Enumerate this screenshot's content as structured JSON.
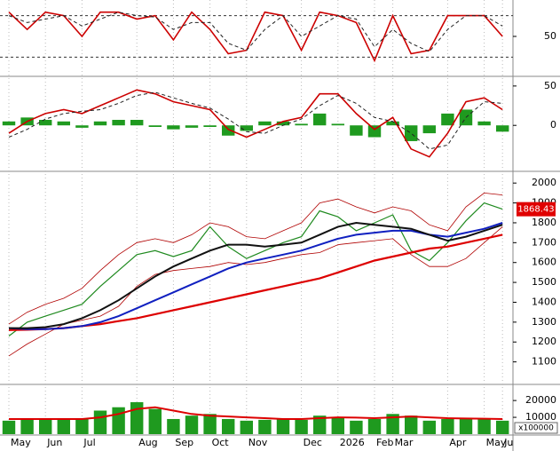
{
  "chart_data": [
    {
      "type": "line",
      "ylim": [
        0,
        100
      ],
      "yticks": [
        50
      ],
      "hlines": [
        20,
        80
      ],
      "series": [
        {
          "color": "#cc0000",
          "width": 1.6,
          "dash": false,
          "values": [
            85,
            60,
            85,
            80,
            50,
            85,
            85,
            75,
            80,
            45,
            85,
            60,
            25,
            30,
            85,
            80,
            30,
            85,
            80,
            70,
            15,
            80,
            25,
            30,
            80,
            80,
            80,
            50
          ]
        },
        {
          "color": "#222222",
          "width": 1,
          "dash": true,
          "values": [
            80,
            70,
            75,
            80,
            65,
            75,
            85,
            80,
            78,
            60,
            70,
            70,
            40,
            30,
            60,
            80,
            50,
            65,
            80,
            75,
            35,
            60,
            40,
            28,
            60,
            80,
            80,
            65
          ]
        }
      ]
    },
    {
      "type": "line",
      "ylim": [
        -55,
        60
      ],
      "yticks": [
        0,
        50
      ],
      "series": [
        {
          "type": "bar",
          "color": "#1f9a1f",
          "values": [
            5,
            10,
            7,
            5,
            -3,
            5,
            7,
            7,
            -2,
            -5,
            -3,
            -2,
            -13,
            -7,
            5,
            5,
            2,
            15,
            2,
            -13,
            -15,
            5,
            -20,
            -10,
            15,
            20,
            5,
            -8
          ]
        },
        {
          "color": "#cc0000",
          "width": 1.6,
          "dash": false,
          "values": [
            -10,
            5,
            15,
            20,
            15,
            25,
            35,
            45,
            40,
            30,
            25,
            20,
            -5,
            -15,
            -5,
            5,
            10,
            40,
            40,
            15,
            -5,
            10,
            -30,
            -40,
            -10,
            30,
            35,
            20
          ]
        },
        {
          "color": "#222222",
          "width": 1,
          "dash": true,
          "values": [
            -15,
            -5,
            8,
            15,
            18,
            20,
            28,
            38,
            42,
            35,
            28,
            22,
            8,
            -8,
            -10,
            0,
            8,
            25,
            38,
            28,
            10,
            5,
            -10,
            -30,
            -25,
            10,
            30,
            28
          ]
        }
      ]
    },
    {
      "type": "line",
      "ylim": [
        1000,
        2050
      ],
      "yticks": [
        1100,
        1200,
        1300,
        1400,
        1500,
        1600,
        1700,
        1800,
        1900,
        2000
      ],
      "series": [
        {
          "color": "#1f8a1f",
          "width": 1.2,
          "dash": false,
          "values": [
            1230,
            1300,
            1330,
            1360,
            1390,
            1480,
            1560,
            1640,
            1660,
            1630,
            1660,
            1780,
            1680,
            1620,
            1660,
            1700,
            1730,
            1860,
            1830,
            1760,
            1800,
            1840,
            1660,
            1610,
            1700,
            1810,
            1900,
            1868.43
          ]
        },
        {
          "color": "#b00000",
          "width": 0.8,
          "dash": false,
          "values": [
            1290,
            1350,
            1390,
            1420,
            1470,
            1560,
            1640,
            1700,
            1720,
            1700,
            1740,
            1800,
            1780,
            1730,
            1720,
            1760,
            1800,
            1900,
            1920,
            1880,
            1850,
            1880,
            1860,
            1790,
            1760,
            1880,
            1950,
            1940
          ]
        },
        {
          "color": "#b00000",
          "width": 0.8,
          "dash": false,
          "values": [
            1130,
            1190,
            1240,
            1290,
            1310,
            1330,
            1380,
            1480,
            1540,
            1560,
            1570,
            1580,
            1600,
            1590,
            1600,
            1620,
            1640,
            1650,
            1690,
            1700,
            1710,
            1720,
            1640,
            1580,
            1580,
            1620,
            1700,
            1780
          ]
        },
        {
          "color": "#dd0000",
          "width": 2.2,
          "dash": false,
          "values": [
            1260,
            1262,
            1265,
            1270,
            1280,
            1290,
            1305,
            1320,
            1340,
            1360,
            1380,
            1400,
            1420,
            1440,
            1460,
            1480,
            1500,
            1520,
            1550,
            1580,
            1610,
            1630,
            1650,
            1670,
            1680,
            1700,
            1720,
            1740
          ]
        },
        {
          "color": "#1020c0",
          "width": 2,
          "dash": false,
          "values": [
            1270,
            1265,
            1265,
            1270,
            1280,
            1300,
            1330,
            1370,
            1410,
            1450,
            1490,
            1530,
            1570,
            1600,
            1620,
            1640,
            1660,
            1690,
            1720,
            1740,
            1750,
            1760,
            1760,
            1740,
            1730,
            1750,
            1770,
            1800
          ]
        },
        {
          "color": "#111111",
          "width": 2,
          "dash": false,
          "values": [
            1270,
            1270,
            1275,
            1290,
            1320,
            1360,
            1410,
            1470,
            1530,
            1580,
            1620,
            1660,
            1690,
            1690,
            1680,
            1690,
            1700,
            1740,
            1780,
            1800,
            1790,
            1780,
            1770,
            1740,
            1710,
            1730,
            1760,
            1790
          ]
        }
      ]
    },
    {
      "type": "bar",
      "ylim": [
        0,
        28000
      ],
      "yticks": [
        10000,
        20000
      ],
      "unit_label": "x100000",
      "categories": [
        "May",
        null,
        "Jun",
        null,
        "Jul",
        null,
        null,
        "Aug",
        null,
        "Sep",
        null,
        "Oct",
        null,
        "Nov",
        null,
        null,
        "Dec",
        null,
        "2026",
        null,
        "Feb",
        "Mar",
        null,
        null,
        "Apr",
        null,
        "May",
        "Ju"
      ],
      "series": [
        {
          "type": "bar",
          "color": "#1f9a1f",
          "values": [
            8000,
            9000,
            8500,
            9000,
            9000,
            14000,
            16000,
            19000,
            15000,
            9000,
            11000,
            12000,
            9000,
            8000,
            8500,
            9000,
            8500,
            11000,
            10000,
            8000,
            9000,
            12000,
            11000,
            8000,
            9000,
            9500,
            9000,
            8000
          ]
        },
        {
          "color": "#dd0000",
          "width": 2,
          "dash": false,
          "values": [
            9000,
            9000,
            9000,
            9000,
            9000,
            10000,
            12000,
            15000,
            16000,
            14000,
            12000,
            11000,
            10500,
            10000,
            9500,
            9000,
            9000,
            9500,
            10000,
            9800,
            9500,
            10000,
            10500,
            10000,
            9500,
            9300,
            9200,
            9000
          ]
        }
      ]
    }
  ]
}
